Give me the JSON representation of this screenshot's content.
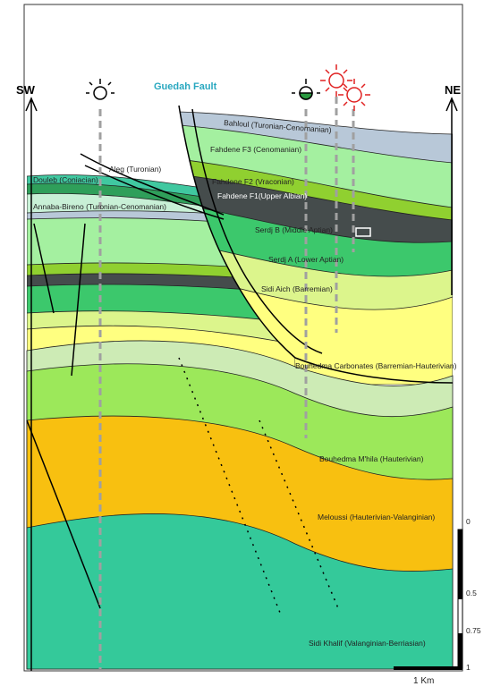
{
  "labels": {
    "sw": "SW",
    "ne": "NE",
    "fault": "Guedah Fault"
  },
  "formations": [
    "Bahloul (Turonian-Cenomanian)",
    "Fahdene F3 (Cenomanian)",
    "Fahdene F2 (Vraconian)",
    "Fahdene F1(Upper Albian)",
    "Serdj B (Middle Aptian)",
    "Serdj A (Lower Aptian)",
    "Sidi Aich (Barremian)",
    "Bouhedma Carbonates (Barremian-Hauterivian)",
    "Bouhedma M'hila (Hauterivian)",
    "Meloussi (Hauterivian-Valanginian)",
    "Sidi Khalif (Valanginian-Berriasian)",
    "Douleb (Coniacian)",
    "Aleg (Turonian)",
    "Annaba-Bireno (Turonian-Cenomanian)"
  ],
  "scale": {
    "ticks": [
      0,
      0.5,
      0.75,
      1
    ],
    "bar": "1 Km"
  }
}
